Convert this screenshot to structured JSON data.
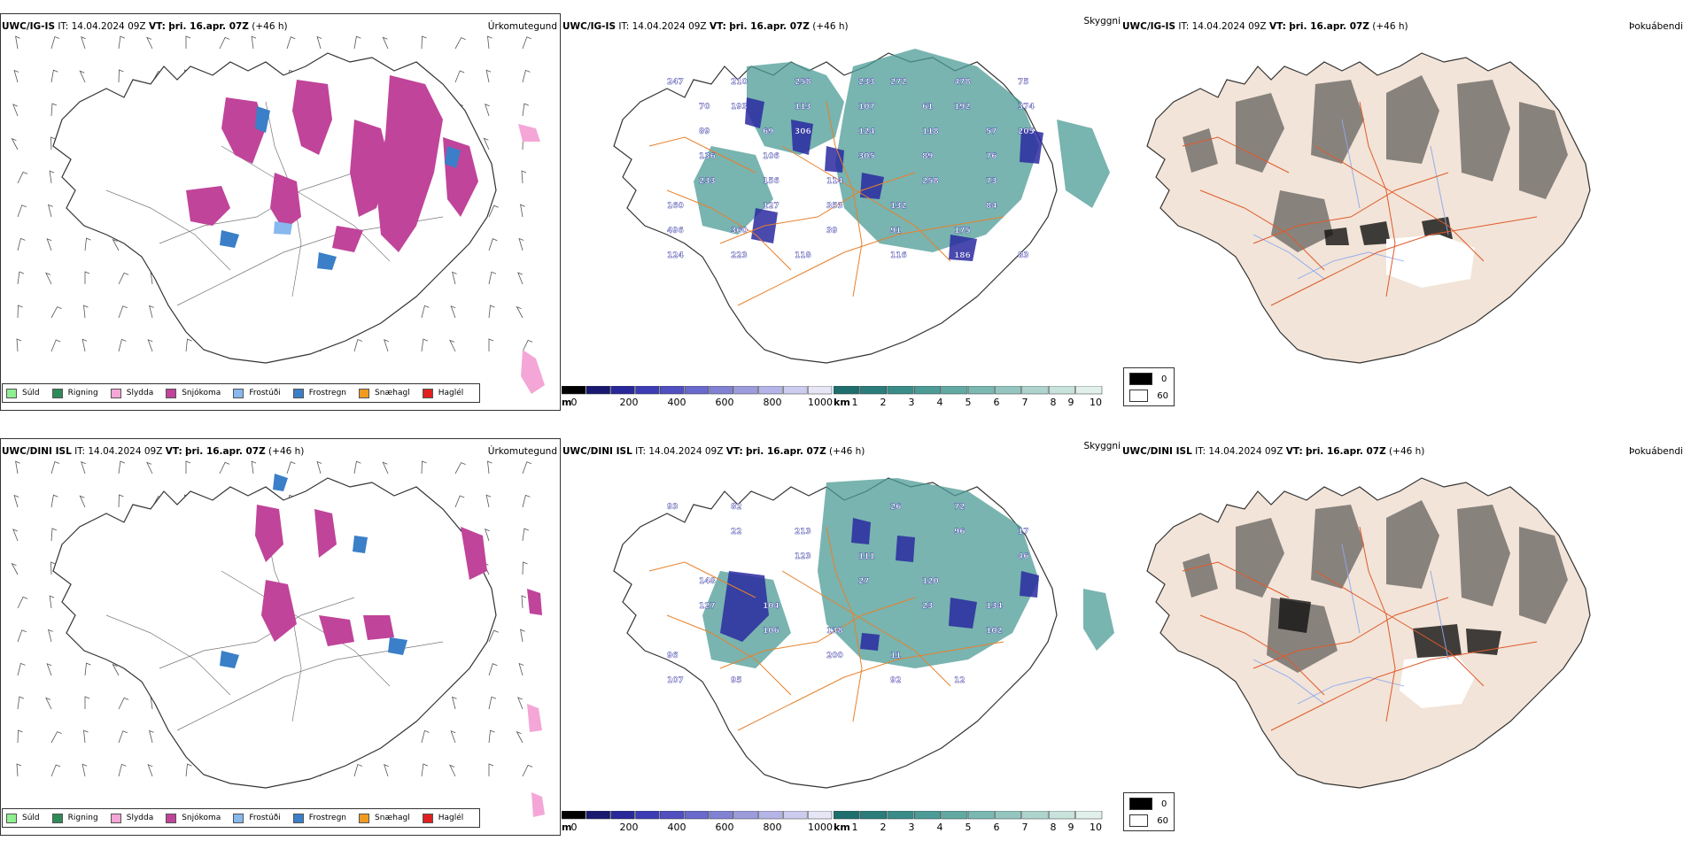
{
  "rows": [
    {
      "precip_panel": {
        "model": "UWC/IG-IS",
        "it_label": "IT:",
        "it_value": "14.04.2024 09Z",
        "vt_label": "VT:",
        "vt_value": "þri. 16.apr. 07Z",
        "lead": "(+46 h)",
        "title": "Úrkomutegund"
      },
      "cloud_panel": {
        "model": "UWC/IG-IS",
        "it_label": "IT:",
        "it_value": "14.04.2024 09Z",
        "vt_label": "VT:",
        "vt_value": "þri. 16.apr. 07Z",
        "lead": "(+46 h)",
        "title": "Skyggni",
        "height_labels": [
          "247",
          "272",
          "193",
          "192",
          "306",
          "205",
          "305",
          "233",
          "258",
          "127",
          "84",
          "39",
          "124",
          "116",
          "210",
          "478",
          "113",
          "374",
          "124",
          "136",
          "89",
          "156",
          "73",
          "353",
          "496",
          "91",
          "223",
          "186",
          "258",
          "75",
          "107",
          "89",
          "118",
          "106",
          "76",
          "114",
          "160",
          "132",
          "360",
          "175",
          "118",
          "83",
          "233",
          "70",
          "61",
          "69",
          "57"
        ]
      },
      "fog_panel": {
        "model": "UWC/IG-IS",
        "it_label": "IT:",
        "it_value": "14.04.2024 09Z",
        "vt_label": "VT:",
        "vt_value": "þri. 16.apr. 07Z",
        "lead": "(+46 h)",
        "title": "Þokuábendi"
      }
    },
    {
      "precip_panel": {
        "model": "UWC/DINI ISL",
        "it_label": "IT:",
        "it_value": "14.04.2024 09Z",
        "vt_label": "VT:",
        "vt_value": "þri. 16.apr. 07Z",
        "lead": "(+46 h)",
        "title": "Úrkomutegund"
      },
      "cloud_panel": {
        "model": "UWC/DINI ISL",
        "it_label": "IT:",
        "it_value": "14.04.2024 09Z",
        "vt_label": "VT:",
        "vt_value": "þri. 16.apr. 07Z",
        "lead": "(+46 h)",
        "title": "Skyggni",
        "height_labels": [
          "93",
          "26",
          "22",
          "96",
          "123",
          "46",
          "27",
          "127",
          "23",
          "106",
          "102",
          "200",
          "107",
          "92",
          "82",
          "72",
          "213",
          "17",
          "111",
          "148",
          "120",
          "104",
          "134",
          "138",
          "96",
          "11",
          "95",
          "12"
        ]
      },
      "fog_panel": {
        "model": "UWC/DINI ISL",
        "it_label": "IT:",
        "it_value": "14.04.2024 09Z",
        "vt_label": "VT:",
        "vt_value": "þri. 16.apr. 07Z",
        "lead": "(+46 h)",
        "title": "Þokuábendi"
      }
    }
  ],
  "precip_legend": [
    {
      "label": "Súld",
      "color": "#90ee90"
    },
    {
      "label": "Rigning",
      "color": "#2e8b57"
    },
    {
      "label": "Slydda",
      "color": "#f4a6d7"
    },
    {
      "label": "Snjókoma",
      "color": "#c0449a"
    },
    {
      "label": "Frostúði",
      "color": "#87b8ee"
    },
    {
      "label": "Frostregn",
      "color": "#3a7fc8"
    },
    {
      "label": "Snæhagl",
      "color": "#f09a20"
    },
    {
      "label": "Haglél",
      "color": "#e02020"
    }
  ],
  "cloud_base_bar": {
    "unit": "m",
    "ticks": [
      "0",
      "200",
      "400",
      "600",
      "800",
      "1000"
    ],
    "colors": [
      "#000000",
      "#191970",
      "#28289a",
      "#3c3cb4",
      "#5050c0",
      "#6a6acc",
      "#8282d4",
      "#9c9cdc",
      "#b4b4e6",
      "#ccccee",
      "#e6e6f6"
    ]
  },
  "visibility_bar": {
    "unit": "km",
    "ticks": [
      "1",
      "2",
      "3",
      "4",
      "5",
      "6",
      "7",
      "8",
      "9",
      "10"
    ],
    "colors": [
      "#1f6e6e",
      "#2a7d7b",
      "#3a8c88",
      "#4c9b96",
      "#62a9a3",
      "#7ab8b1",
      "#94c6bf",
      "#aed4cd",
      "#c8e2dc",
      "#e2f0ec"
    ]
  },
  "fog_legend": [
    {
      "label": "0",
      "color": "#000000"
    },
    {
      "label": "60",
      "color": "#ffffff"
    }
  ],
  "colors": {
    "snow": "#c0449a",
    "frost_rain": "#3a7fc8",
    "cloud_base": "#2a2aa0",
    "visibility": "#4c9b96",
    "roads_cloud": "#e8812c",
    "land_fog": "#f2e4d8",
    "roads_fog": "#e05a2a",
    "rivers_fog": "#8ca8f0"
  }
}
